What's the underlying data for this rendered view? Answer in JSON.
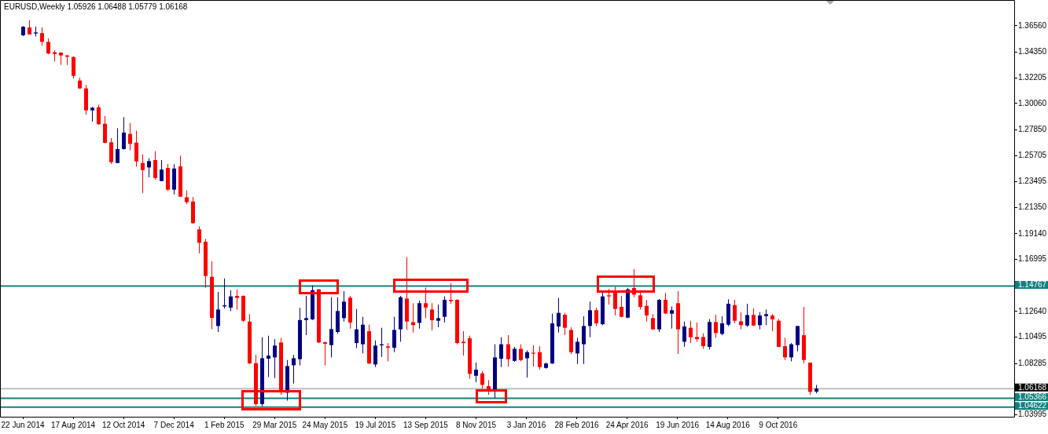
{
  "chart_data": {
    "type": "candlestick",
    "title": "EURUSD,Weekly 1.05926 1.06488 1.05779 1.06168",
    "categories": [
      null,
      null,
      null,
      "22 Jun 2014",
      null,
      null,
      null,
      null,
      null,
      null,
      null,
      "17 Aug 2014",
      null,
      null,
      null,
      null,
      null,
      null,
      null,
      "12 Oct 2014",
      null,
      null,
      null,
      null,
      null,
      null,
      null,
      "7 Dec 2014",
      null,
      null,
      null,
      null,
      null,
      null,
      null,
      "1 Feb 2015",
      null,
      null,
      null,
      null,
      null,
      null,
      null,
      "29 Mar 2015",
      null,
      null,
      null,
      null,
      null,
      null,
      null,
      "24 May 2015",
      null,
      null,
      null,
      null,
      null,
      null,
      null,
      "19 Jul 2015",
      null,
      null,
      null,
      null,
      null,
      null,
      null,
      "13 Sep 2015",
      null,
      null,
      null,
      null,
      null,
      null,
      null,
      "8 Nov 2015",
      null,
      null,
      null,
      null,
      null,
      null,
      null,
      "3 Jan 2016",
      null,
      null,
      null,
      null,
      null,
      null,
      null,
      "28 Feb 2016",
      null,
      null,
      null,
      null,
      null,
      null,
      null,
      "24 Apr 2016",
      null,
      null,
      null,
      null,
      null,
      null,
      null,
      "19 Jun 2016",
      null,
      null,
      null,
      null,
      null,
      null,
      null,
      "14 Aug 2016",
      null,
      null,
      null,
      null,
      null,
      null,
      null,
      "9 Oct 2016",
      null,
      null,
      null,
      null,
      null,
      null,
      null,
      null,
      null,
      null,
      null,
      null,
      null,
      null,
      null,
      null,
      null,
      null,
      null,
      null,
      null,
      null,
      null,
      null,
      null,
      null,
      null,
      null,
      null,
      null,
      null,
      null,
      null,
      null,
      null,
      null,
      null
    ],
    "ohlc": [
      null,
      null,
      null,
      [
        1.3577,
        1.3654,
        1.3571,
        1.3649
      ],
      [
        1.3643,
        1.3702,
        1.3584,
        1.3584
      ],
      [
        1.3592,
        1.3649,
        1.3566,
        1.3601
      ],
      [
        1.3595,
        1.3643,
        1.3489,
        1.3522
      ],
      [
        1.3522,
        1.3551,
        1.3419,
        1.3424
      ],
      [
        1.3435,
        1.345,
        1.3358,
        1.3421
      ],
      [
        1.3432,
        1.3435,
        1.3329,
        1.3408
      ],
      [
        1.3408,
        1.3413,
        1.3329,
        1.3397
      ],
      [
        1.3395,
        1.3402,
        1.3215,
        1.3237
      ],
      [
        1.3198,
        1.3222,
        1.3128,
        1.3132
      ],
      [
        1.3132,
        1.3161,
        1.2913,
        1.2948
      ],
      [
        1.2948,
        1.2979,
        1.2854,
        1.297
      ],
      [
        1.2974,
        1.2996,
        1.2827,
        1.2832
      ],
      [
        1.2836,
        1.2902,
        1.2672,
        1.2676
      ],
      [
        1.2681,
        1.2716,
        1.2499,
        1.2514
      ],
      [
        1.2507,
        1.2799,
        1.2507,
        1.2624
      ],
      [
        1.2624,
        1.2891,
        1.2619,
        1.2762
      ],
      [
        1.2751,
        1.2843,
        1.2613,
        1.2667
      ],
      [
        1.2678,
        1.2777,
        1.2477,
        1.2521
      ],
      [
        1.2507,
        1.258,
        1.2256,
        1.2448
      ],
      [
        1.247,
        1.2547,
        1.2387,
        1.2523
      ],
      [
        1.2532,
        1.2606,
        1.2367,
        1.2382
      ],
      [
        1.2356,
        1.2532,
        1.2354,
        1.2453
      ],
      [
        1.2466,
        1.2499,
        1.2273,
        1.2284
      ],
      [
        1.2284,
        1.2497,
        1.2244,
        1.2461
      ],
      [
        1.2479,
        1.2569,
        1.2223,
        1.2225
      ],
      [
        1.222,
        1.2277,
        1.2163,
        1.2179
      ],
      [
        1.2185,
        1.2222,
        1.1999,
        1.2003
      ],
      [
        1.1951,
        1.1977,
        1.1751,
        1.1839
      ],
      [
        1.1848,
        1.1872,
        1.1462,
        1.1561
      ],
      [
        1.1554,
        1.1685,
        1.1115,
        1.121
      ],
      [
        1.1142,
        1.1427,
        1.1092,
        1.128
      ],
      [
        1.1306,
        1.1541,
        1.1289,
        1.1315
      ],
      [
        1.1296,
        1.1442,
        1.1267,
        1.139
      ],
      [
        1.1394,
        1.1449,
        1.128,
        1.1377
      ],
      [
        1.1394,
        1.1399,
        1.1175,
        1.1186
      ],
      [
        1.1179,
        1.1241,
        1.0824,
        1.0828
      ],
      [
        1.0831,
        1.0901,
        1.0473,
        1.0488
      ],
      [
        1.0488,
        1.1048,
        1.047,
        1.0872
      ],
      [
        1.0868,
        1.1061,
        1.0714,
        1.0894
      ],
      [
        1.0879,
        1.1032,
        1.0706,
        1.0978
      ],
      [
        1.1004,
        1.1043,
        1.0565,
        1.0605
      ],
      [
        1.0583,
        1.0857,
        1.0517,
        1.0806
      ],
      [
        1.0813,
        1.0901,
        1.066,
        1.0872
      ],
      [
        1.0864,
        1.1295,
        1.0813,
        1.1192
      ],
      [
        1.1192,
        1.1394,
        1.1065,
        1.1208
      ],
      [
        1.1197,
        1.1482,
        1.1192,
        1.1442
      ],
      [
        1.1449,
        1.1453,
        1.0999,
        1.1004
      ],
      [
        1.1006,
        1.101,
        1.0813,
        1.0993
      ],
      [
        1.0982,
        1.1383,
        1.0879,
        1.1116
      ],
      [
        1.1092,
        1.1383,
        1.1076,
        1.1267
      ],
      [
        1.1208,
        1.1434,
        1.1179,
        1.1346
      ],
      [
        1.1379,
        1.1394,
        1.112,
        1.1171
      ],
      [
        1.0999,
        1.1285,
        1.0956,
        1.1114
      ],
      [
        1.0989,
        1.1219,
        1.0912,
        1.1153
      ],
      [
        1.1098,
        1.1153,
        1.0824,
        1.0828
      ],
      [
        1.082,
        1.1021,
        1.0798,
        1.0978
      ],
      [
        1.098,
        1.1127,
        1.0883,
        1.0989
      ],
      [
        1.0971,
        1.0999,
        1.0846,
        1.096
      ],
      [
        1.096,
        1.1219,
        1.0923,
        1.1109
      ],
      [
        1.1114,
        1.1394,
        1.101,
        1.1383
      ],
      [
        1.1372,
        1.1719,
        1.1109,
        1.1179
      ],
      [
        1.1175,
        1.1333,
        1.1087,
        1.1149
      ],
      [
        1.1168,
        1.1355,
        1.112,
        1.1333
      ],
      [
        1.1333,
        1.1464,
        1.1208,
        1.1296
      ],
      [
        1.128,
        1.1333,
        1.1105,
        1.119
      ],
      [
        1.1186,
        1.1322,
        1.1131,
        1.1208
      ],
      [
        1.1219,
        1.139,
        1.1171,
        1.1361
      ],
      [
        1.1361,
        1.1499,
        1.1328,
        1.135
      ],
      [
        1.1361,
        1.1366,
        1.0989,
        1.0999
      ],
      [
        1.101,
        1.1098,
        1.0894,
        1.0999
      ],
      [
        1.1039,
        1.1061,
        1.0699,
        1.0741
      ],
      [
        1.0725,
        1.0835,
        1.0671,
        1.0776
      ],
      [
        1.0745,
        1.0763,
        1.0616,
        1.0649
      ],
      [
        1.0638,
        1.0688,
        1.0565,
        1.0605
      ],
      [
        1.06,
        1.0989,
        1.0539,
        1.0879
      ],
      [
        1.0868,
        1.1048,
        1.0798,
        1.0989
      ],
      [
        1.0989,
        1.1065,
        1.0802,
        1.0864
      ],
      [
        1.085,
        1.0967,
        1.0842,
        1.0951
      ],
      [
        1.0951,
        1.0989,
        1.0846,
        1.0857
      ],
      [
        1.0872,
        1.0938,
        1.071,
        1.0923
      ],
      [
        1.0918,
        1.0982,
        1.0802,
        1.091
      ],
      [
        1.0923,
        1.0973,
        1.0776,
        1.0798
      ],
      [
        1.0791,
        1.0835,
        1.0785,
        1.0828
      ],
      [
        1.0828,
        1.1245,
        1.0824,
        1.1164
      ],
      [
        1.1138,
        1.1377,
        1.1087,
        1.1252
      ],
      [
        1.1236,
        1.1252,
        1.1065,
        1.1127
      ],
      [
        1.1109,
        1.1131,
        1.0907,
        1.0923
      ],
      [
        1.0912,
        1.1043,
        1.0824,
        1.101
      ],
      [
        1.0989,
        1.1223,
        1.0824,
        1.1142
      ],
      [
        1.1142,
        1.1346,
        1.1048,
        1.1274
      ],
      [
        1.1274,
        1.1296,
        1.1142,
        1.1164
      ],
      [
        1.1157,
        1.1438,
        1.1149,
        1.139
      ],
      [
        1.1399,
        1.1453,
        1.1322,
        1.139
      ],
      [
        1.1438,
        1.1471,
        1.123,
        1.1285
      ],
      [
        1.1302,
        1.1394,
        1.1214,
        1.1219
      ],
      [
        1.1212,
        1.146,
        1.1208,
        1.1449
      ],
      [
        1.146,
        1.1618,
        1.1383,
        1.1405
      ],
      [
        1.1399,
        1.1442,
        1.128,
        1.1302
      ],
      [
        1.1311,
        1.1361,
        1.1179,
        1.123
      ],
      [
        1.1208,
        1.1241,
        1.1109,
        1.1114
      ],
      [
        1.1114,
        1.1368,
        1.1092,
        1.1361
      ],
      [
        1.1361,
        1.142,
        1.1241,
        1.1247
      ],
      [
        1.1245,
        1.1306,
        1.112,
        1.1274
      ],
      [
        1.1333,
        1.1434,
        1.0907,
        1.1114
      ],
      [
        1.101,
        1.1179,
        1.0967,
        1.1138
      ],
      [
        1.1127,
        1.1186,
        1.0999,
        1.1048
      ],
      [
        1.105,
        1.1171,
        1.101,
        1.1032
      ],
      [
        1.105,
        1.1081,
        1.0951,
        1.0973
      ],
      [
        1.0967,
        1.1201,
        1.0945,
        1.1175
      ],
      [
        1.1175,
        1.1236,
        1.1043,
        1.1083
      ],
      [
        1.1076,
        1.1223,
        1.1065,
        1.1164
      ],
      [
        1.1153,
        1.1366,
        1.1142,
        1.1328
      ],
      [
        1.1317,
        1.1361,
        1.1164,
        1.1186
      ],
      [
        1.1181,
        1.1256,
        1.1114,
        1.1149
      ],
      [
        1.1146,
        1.1328,
        1.1135,
        1.1234
      ],
      [
        1.1234,
        1.1289,
        1.1142,
        1.1146
      ],
      [
        1.1149,
        1.1258,
        1.1114,
        1.123
      ],
      [
        1.1225,
        1.128,
        1.1149,
        1.1241
      ],
      [
        1.123,
        1.1241,
        1.1098,
        1.1197
      ],
      [
        1.1186,
        1.1201,
        1.0967,
        1.0967
      ],
      [
        1.0973,
        1.1043,
        1.0857,
        1.0879
      ],
      [
        1.0879,
        1.0999,
        1.0846,
        1.0989
      ],
      [
        1.0982,
        1.1142,
        1.0929,
        1.1142
      ],
      [
        1.1065,
        1.1302,
        1.0828,
        1.0857
      ],
      [
        1.0835,
        1.0835,
        1.0565,
        1.059
      ],
      [
        1.05926,
        1.06488,
        1.05779,
        1.06168
      ],
      null,
      null,
      null,
      null,
      null,
      null,
      null,
      null,
      null,
      null,
      null,
      null,
      null,
      null,
      null,
      null,
      null,
      null,
      null,
      null,
      null,
      null,
      null,
      null,
      null,
      null,
      null,
      null,
      null,
      null,
      null
    ],
    "colors": [
      null,
      null,
      null,
      "#000080",
      "#ff0000",
      "#000080",
      "#ff0000",
      "#ff0000",
      "#ff0000",
      "#ff0000",
      "#ff0000",
      "#ff0000",
      "#ff0000",
      "#ff0000",
      "#000080",
      "#ff0000",
      "#ff0000",
      "#ff0000",
      "#000080",
      "#000080",
      "#ff0000",
      "#ff0000",
      "#ff0000",
      "#000080",
      "#ff0000",
      "#000080",
      "#ff0000",
      "#000080",
      "#ff0000",
      "#ff0000",
      "#ff0000",
      "#ff0000",
      "#ff0000",
      "#ff0000",
      "#000080",
      "#000080",
      "#000080",
      "#ff0000",
      "#ff0000",
      "#ff0000",
      "#ff0000",
      "#000080",
      "#000080",
      "#000080",
      "#ff0000",
      "#000080",
      "#000080",
      "#000080",
      "#000080",
      "#000080",
      "#ff0000",
      "#ff0000",
      "#000080",
      "#000080",
      "#000080",
      "#ff0000",
      "#000080",
      "#000080",
      "#ff0000",
      "#000080",
      "#000080",
      "#ff0000",
      "#000080",
      "#000080",
      "#ff0000",
      "#ff0000",
      "#000080",
      "#ff0000",
      "#ff0000",
      "#000080",
      "#000080",
      "#ff0000",
      "#ff0000",
      "#ff0000",
      "#ff0000",
      "#000080",
      "#ff0000",
      "#ff0000",
      "#000080",
      "#000080",
      "#ff0000",
      "#000080",
      "#ff0000",
      "#000080",
      "#ff0000",
      "#ff0000",
      "#000080",
      "#000080",
      "#000080",
      "#ff0000",
      "#ff0000",
      "#000080",
      "#000080",
      "#000080",
      "#ff0000",
      "#000080",
      "#ff0000",
      "#ff0000",
      "#ff0000",
      "#000080",
      "#ff0000",
      "#ff0000",
      "#ff0000",
      "#ff0000",
      "#000080",
      "#ff0000",
      "#000080",
      "#ff0000",
      "#000080",
      "#ff0000",
      "#ff0000",
      "#ff0000",
      "#000080",
      "#ff0000",
      "#000080",
      "#000080",
      "#ff0000",
      "#ff0000",
      "#000080",
      "#ff0000",
      "#000080",
      "#000080",
      "#ff0000",
      "#ff0000",
      "#ff0000",
      "#000080",
      "#000080",
      "#ff0000",
      "#ff0000",
      "#000080",
      null,
      null,
      null,
      null,
      null,
      null,
      null,
      null,
      null,
      null,
      null,
      null,
      null,
      null,
      null,
      null,
      null,
      null,
      null,
      null,
      null,
      null,
      null,
      null,
      null,
      null,
      null,
      null,
      null,
      null,
      null
    ],
    "ylim": [
      1.0382,
      1.3866
    ],
    "yticks": [
      {
        "value": 1.3656,
        "label": "1.36560"
      },
      {
        "value": 1.3435,
        "label": "1.34350"
      },
      {
        "value": 1.32205,
        "label": "1.32205"
      },
      {
        "value": 1.3006,
        "label": "1.30060"
      },
      {
        "value": 1.2785,
        "label": "1.27850"
      },
      {
        "value": 1.25705,
        "label": "1.25705"
      },
      {
        "value": 1.23495,
        "label": "1.23495"
      },
      {
        "value": 1.2135,
        "label": "1.21350"
      },
      {
        "value": 1.1914,
        "label": "1.19140"
      },
      {
        "value": 1.16995,
        "label": "1.16995"
      },
      {
        "value": 1.1264,
        "label": "1.12640"
      },
      {
        "value": 1.10495,
        "label": "1.10495"
      },
      {
        "value": 1.08285,
        "label": "1.08285"
      },
      {
        "value": 1.03995,
        "label": "1.03995"
      }
    ],
    "ref_lines": [
      {
        "axis": "y",
        "value": 1.14767,
        "label": "1.14767",
        "color": "#138080"
      },
      {
        "axis": "y",
        "value": 1.06168,
        "label": "1.06168",
        "color": "#c0c0c0"
      },
      {
        "axis": "y",
        "value": 1.05366,
        "label": "1.05366",
        "color": "#138080"
      },
      {
        "axis": "y",
        "value": 1.04622,
        "label": "1.04622",
        "color": "#138080"
      }
    ]
  }
}
